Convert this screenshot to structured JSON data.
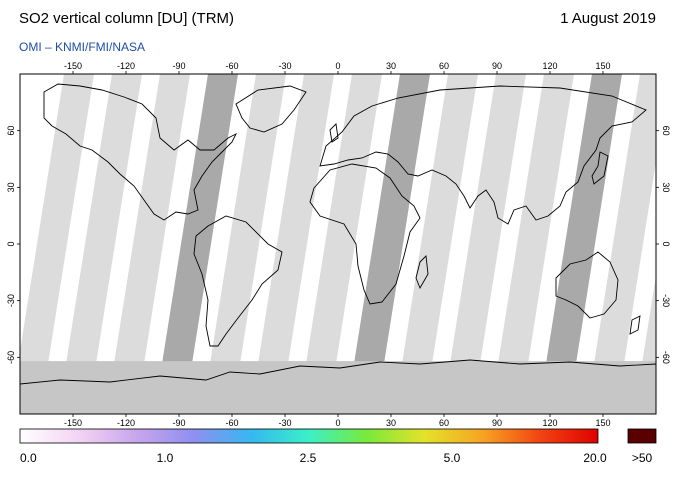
{
  "header": {
    "title": "SO2 vertical column [DU] (TRM)",
    "date": "1 August 2019",
    "credit": "OMI  –  KNMI/FMI/NASA"
  },
  "map": {
    "projection": "equirectangular",
    "lon_range": [
      -180,
      180
    ],
    "lat_range": [
      -90,
      90
    ],
    "lon_ticks": [
      "-150",
      "-120",
      "-90",
      "-60",
      "-30",
      "0",
      "30",
      "60",
      "90",
      "120",
      "150"
    ],
    "lat_ticks": [
      "60",
      "30",
      "0",
      "-30",
      "-60"
    ],
    "colors": {
      "swath_light": "#dcdcdc",
      "swath_dark": "#a9a9a9",
      "polar_night": "#c6c6c6",
      "coastline": "#000000"
    }
  },
  "colorbar": {
    "labels": [
      "0.0",
      "1.0",
      "2.5",
      "5.0",
      "20.0",
      ">50"
    ],
    "colors": [
      "#ffffff",
      "#f4d4f4",
      "#c9a6ee",
      "#8f8ff0",
      "#35b8f0",
      "#3bf0c8",
      "#78ea3a",
      "#e4e22a",
      "#f6a422",
      "#f24412",
      "#e00000"
    ],
    "overflow_color": "#5a0000"
  }
}
